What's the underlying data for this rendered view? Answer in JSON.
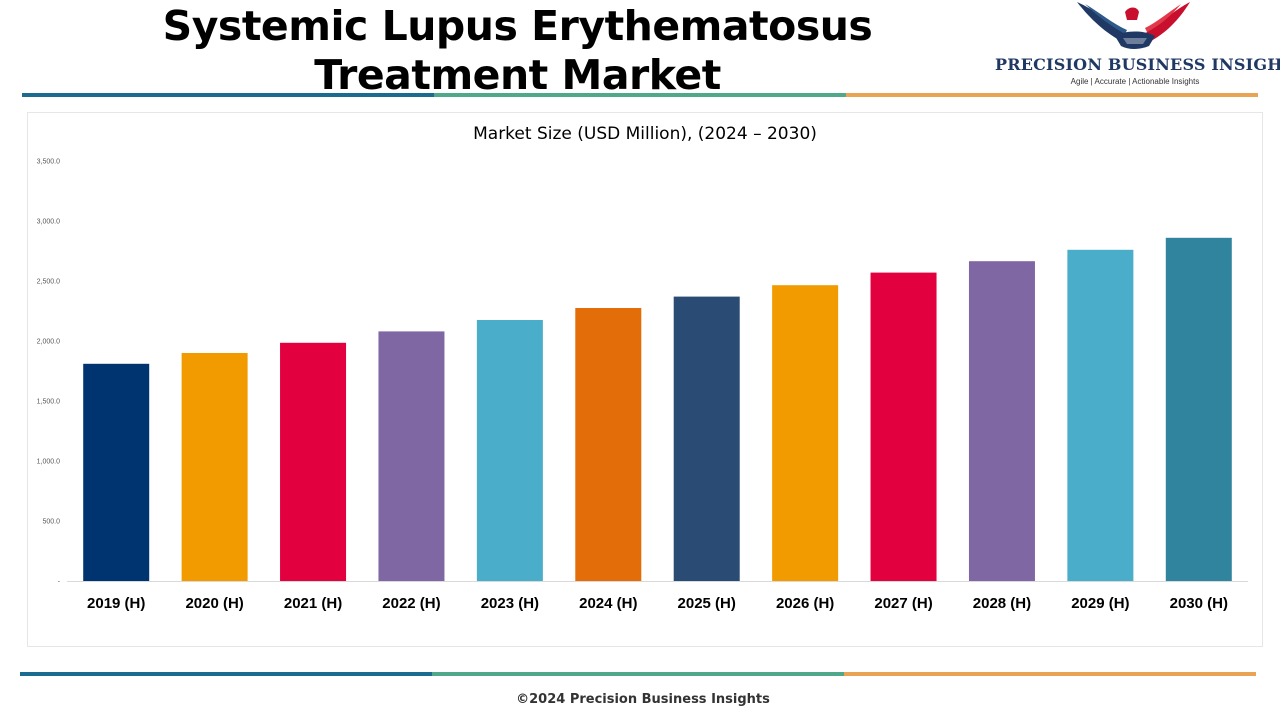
{
  "header": {
    "title": "Systemic Lupus Erythematosus Treatment Market",
    "brand": {
      "name": "PRECISION BUSINESS INSIGHTS",
      "tagline": "Agile | Accurate | Actionable Insights",
      "logo_icon": "eagle-handshake-icon"
    }
  },
  "colors": {
    "stripe_blue": "#1b6a8f",
    "stripe_green": "#4fa88a",
    "stripe_orange": "#e8a354"
  },
  "chart_data": {
    "type": "bar",
    "title": "Market Size (USD Million), (2024 – 2030)",
    "xlabel": "",
    "ylabel": "",
    "ylim": [
      0,
      3500
    ],
    "yticks": [
      0,
      500,
      1000,
      1500,
      2000,
      2500,
      3000,
      3500
    ],
    "ytick_labels": [
      "-",
      "500.0",
      "1,000.0",
      "1,500.0",
      "2,000.0",
      "2,500.0",
      "3,000.0",
      "3,500.0"
    ],
    "grid": false,
    "legend": "none",
    "categories": [
      "2019 (H)",
      "2020 (H)",
      "2021 (H)",
      "2022 (H)",
      "2023 (H)",
      "2024 (H)",
      "2025 (H)",
      "2026 (H)",
      "2027 (H)",
      "2028 (H)",
      "2029 (H)",
      "2030 (H)"
    ],
    "values": [
      1810,
      1900,
      1985,
      2080,
      2175,
      2275,
      2370,
      2465,
      2570,
      2665,
      2760,
      2860
    ],
    "bar_colors": [
      "#003470",
      "#f29b00",
      "#e2003f",
      "#7f67a3",
      "#4aadc9",
      "#e26d09",
      "#2a4b73",
      "#f29b00",
      "#e2003f",
      "#7f67a3",
      "#4aadc9",
      "#30849d"
    ]
  },
  "footer": {
    "copyright": "©2024 Precision Business Insights"
  }
}
